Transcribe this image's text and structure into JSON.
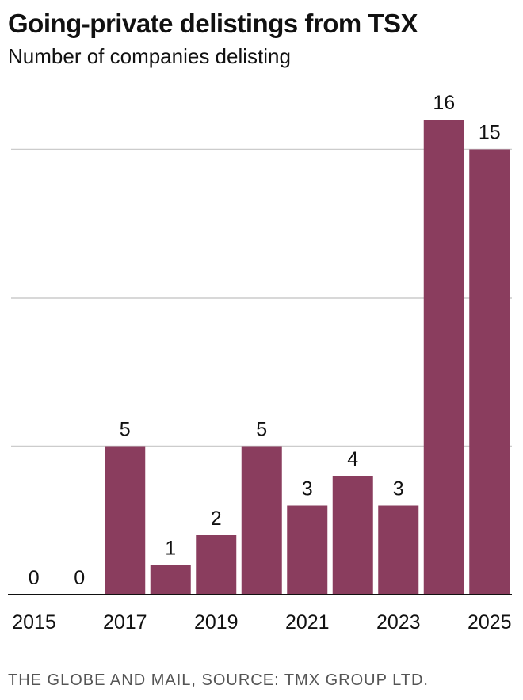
{
  "header": {
    "title": "Going-private delistings from TSX",
    "subtitle": "Number of companies delisting"
  },
  "footer": {
    "source": "THE GLOBE AND MAIL, SOURCE: TMX GROUP LTD."
  },
  "colors": {
    "bar": "#8a3d5e",
    "grid": "#cccccc",
    "axis": "#111111"
  },
  "chart_data": {
    "type": "bar",
    "title": "Going-private delistings from TSX",
    "subtitle": "Number of companies delisting",
    "xlabel": "",
    "ylabel": "",
    "categories": [
      "2015",
      "2016",
      "2017",
      "2018",
      "2019",
      "2020",
      "2021",
      "2022",
      "2023",
      "2024",
      "2025"
    ],
    "values": [
      0,
      0,
      5,
      1,
      2,
      5,
      3,
      4,
      3,
      16,
      15
    ],
    "x_tick_labels": [
      "2015",
      "2017",
      "2019",
      "2021",
      "2023",
      "2025"
    ],
    "ylim": [
      0,
      16
    ],
    "gridlines": [
      5,
      10,
      15
    ],
    "grid": true,
    "legend": "none",
    "data_labels": true
  }
}
